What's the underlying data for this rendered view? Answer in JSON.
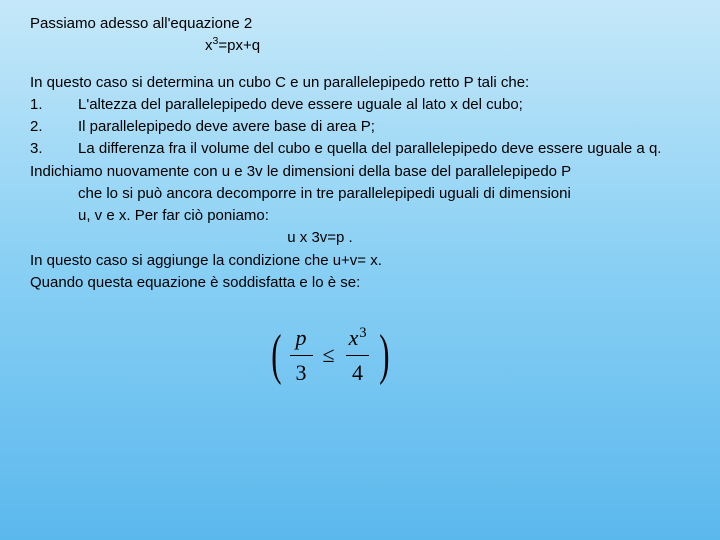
{
  "intro": "Passiamo adesso all'equazione 2",
  "equation_prefix": "x",
  "equation_exp": "3",
  "equation_suffix": "=px+q",
  "lead": "In questo caso si determina un cubo C e un parallelepipedo retto P tali che:",
  "items": [
    {
      "num": "1.",
      "text": "L'altezza del parallelepipedo deve essere uguale al lato x del cubo;"
    },
    {
      "num": "2.",
      "text": "Il parallelepipedo deve avere base di area P;"
    },
    {
      "num": "3.",
      "text": "La differenza fra il volume del cubo e quella del parallelepipedo deve essere uguale a q."
    }
  ],
  "para1": "Indichiamo nuovamente con u e 3v le dimensioni della base del parallelepipedo P",
  "para1b": "che lo si può ancora decomporre in tre parallelepipedi uguali di dimensioni",
  "para1c": "u, v e x. Per far ciò poniamo:",
  "center_eq": "u x 3v=p .",
  "para2": "In questo caso si aggiunge la condizione che u+v= x.",
  "para3": "Quando questa equazione è soddisfatta e lo è se:",
  "formula": {
    "left_num": "p",
    "left_den": "3",
    "op": "≤",
    "right_num_base": "x",
    "right_num_exp": "3",
    "right_den": "4"
  },
  "colors": {
    "bg_top": "#c5e8f9",
    "bg_mid": "#88cff4",
    "bg_bottom": "#5bb8ed",
    "text": "#000000"
  },
  "fontsize_body": 15,
  "fontsize_formula": 22
}
